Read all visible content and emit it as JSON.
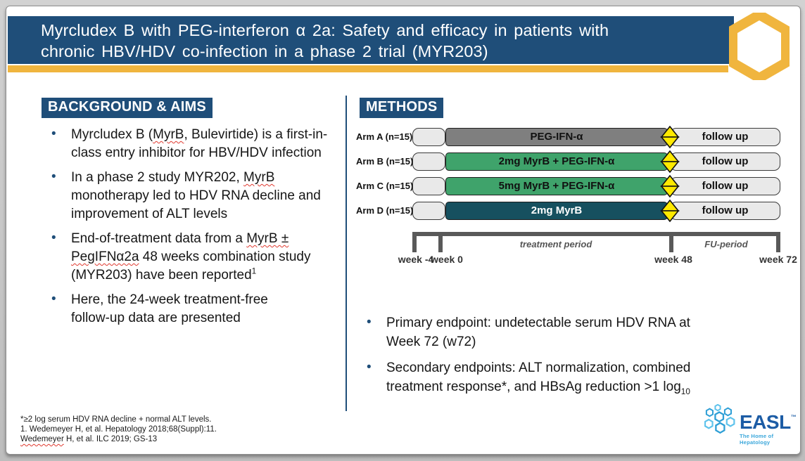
{
  "header": {
    "title_line1": "Myrcludex B with PEG-interferon α 2a: Safety and efficacy in patients with",
    "title_line2": "chronic HBV/HDV co-infection in a phase 2 trial (MYR203)"
  },
  "colors": {
    "header_blue": "#1F4E79",
    "accent_gold": "#F0B53E",
    "diamond_yellow": "#FFE900",
    "bullet_blue": "#1F4E79",
    "wavy_red": "#E0392F",
    "easl_blue": "#1C5CA5",
    "easl_light_blue": "#3BA7DB"
  },
  "sections": {
    "background": {
      "heading": "BACKGROUND & AIMS",
      "bullets": [
        [
          {
            "t": "Myrcludex B ("
          },
          {
            "t": "MyrB",
            "s": "wavy"
          },
          {
            "t": ", Bulevirtide) is a first-in-"
          },
          {
            "t": "",
            "s": "br"
          },
          {
            "t": "class entry inhibitor for HBV/HDV infection"
          }
        ],
        [
          {
            "t": "In a phase 2 study MYR202, "
          },
          {
            "t": "MyrB",
            "s": "wavy"
          },
          {
            "t": "",
            "s": "br"
          },
          {
            "t": "monotherapy led to HDV RNA decline and"
          },
          {
            "t": "",
            "s": "br"
          },
          {
            "t": "improvement of ALT levels"
          }
        ],
        [
          {
            "t": "End-of-treatment data from a "
          },
          {
            "t": "MyrB ±",
            "s": "wavy"
          },
          {
            "t": "",
            "s": "br"
          },
          {
            "t": "PegIFNα2a",
            "s": "wavy"
          },
          {
            "t": " 48 weeks combination study"
          },
          {
            "t": "",
            "s": "br"
          },
          {
            "t": "(MYR203) have been reported"
          },
          {
            "t": "1",
            "s": "sup"
          }
        ],
        [
          {
            "t": "Here, the 24-week treatment-free"
          },
          {
            "t": "",
            "s": "br"
          },
          {
            "t": "follow-up data are presented"
          }
        ]
      ]
    },
    "methods": {
      "heading": "METHODS",
      "arms": [
        {
          "label": "Arm A (n=15)",
          "treatment": "PEG-IFN-α",
          "bar_color": "#7F7F7F",
          "text_color": "#111111",
          "followup": "follow up"
        },
        {
          "label": "Arm B (n=15)",
          "treatment": "2mg MyrB + PEG-IFN-α",
          "bar_color": "#3FA36B",
          "text_color": "#111111",
          "followup": "follow up"
        },
        {
          "label": "Arm C (n=15)",
          "treatment": "5mg MyrB + PEG-IFN-α",
          "bar_color": "#3FA36B",
          "text_color": "#111111",
          "followup": "follow up"
        },
        {
          "label": "Arm D (n=15)",
          "treatment": "2mg MyrB",
          "bar_color": "#16505F",
          "text_color": "#FFFFFF",
          "followup": "follow up"
        }
      ],
      "timeline": {
        "week_labels": [
          "week -4",
          "week 0",
          "week 48",
          "week 72"
        ],
        "period_labels": [
          "treatment period",
          "FU-period"
        ]
      },
      "bullets": [
        [
          {
            "t": "Primary endpoint: undetectable serum HDV RNA at"
          },
          {
            "t": "",
            "s": "br"
          },
          {
            "t": "Week 72 (w72)"
          }
        ],
        [
          {
            "t": "Secondary endpoints: ALT normalization, combined"
          },
          {
            "t": "",
            "s": "br"
          },
          {
            "t": "treatment response*, and HBsAg reduction >1 log"
          },
          {
            "t": "10",
            "s": "sub"
          }
        ]
      ]
    }
  },
  "footnotes": {
    "lines": [
      [
        {
          "t": "*≥2 log serum HDV RNA decline + normal ALT levels."
        }
      ],
      [
        {
          "t": "1. Wedemeyer H, et al. Hepatology 2018;68(Suppl):11."
        }
      ],
      [
        {
          "t": "Wedemeyer",
          "s": "wavy"
        },
        {
          "t": " H, et al. ILC 2019; GS-13"
        }
      ]
    ]
  },
  "easl": {
    "wordmark": "EASL",
    "tm": "™",
    "tagline": "The Home of Hepatology"
  },
  "bullet_glyph": "•"
}
